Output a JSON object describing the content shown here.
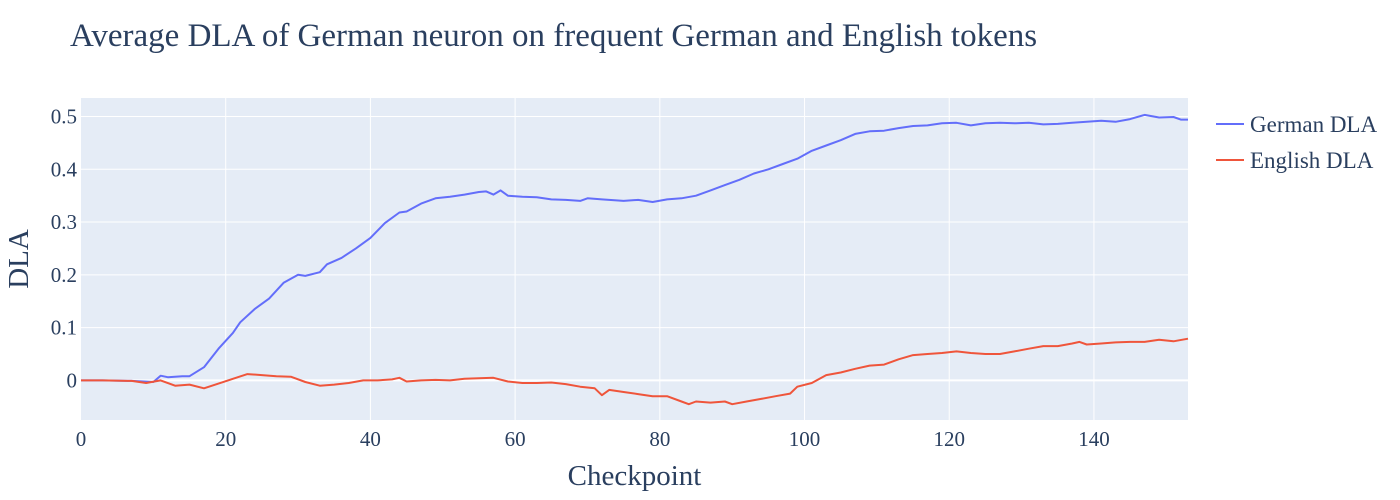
{
  "chart_data": {
    "type": "line",
    "title": "Average DLA of German neuron on frequent German and English tokens",
    "xlabel": "Checkpoint",
    "ylabel": "DLA",
    "xlim": [
      0,
      153
    ],
    "ylim": [
      -0.075,
      0.535
    ],
    "x_ticks": [
      0,
      20,
      40,
      60,
      80,
      100,
      120,
      140
    ],
    "y_ticks": [
      0,
      0.1,
      0.2,
      0.3,
      0.4,
      0.5
    ],
    "y_tick_labels": [
      "0",
      "0.1",
      "0.2",
      "0.3",
      "0.4",
      "0.5"
    ],
    "grid": true,
    "legend_position": "top-right",
    "plot_background": "#e5ecf6",
    "series": [
      {
        "name": "German DLA",
        "color": "#636efa",
        "points": [
          [
            0,
            0
          ],
          [
            3,
            0
          ],
          [
            7,
            -0.001
          ],
          [
            10,
            -0.003
          ],
          [
            11,
            0.009
          ],
          [
            12,
            0.006
          ],
          [
            14,
            0.008
          ],
          [
            15,
            0.008
          ],
          [
            17,
            0.025
          ],
          [
            19,
            0.06
          ],
          [
            21,
            0.09
          ],
          [
            22,
            0.11
          ],
          [
            24,
            0.135
          ],
          [
            26,
            0.155
          ],
          [
            28,
            0.185
          ],
          [
            30,
            0.2
          ],
          [
            31,
            0.198
          ],
          [
            33,
            0.205
          ],
          [
            34,
            0.22
          ],
          [
            36,
            0.232
          ],
          [
            38,
            0.25
          ],
          [
            40,
            0.27
          ],
          [
            42,
            0.298
          ],
          [
            44,
            0.318
          ],
          [
            45,
            0.32
          ],
          [
            47,
            0.335
          ],
          [
            49,
            0.345
          ],
          [
            51,
            0.348
          ],
          [
            53,
            0.352
          ],
          [
            55,
            0.357
          ],
          [
            56,
            0.358
          ],
          [
            57,
            0.352
          ],
          [
            58,
            0.36
          ],
          [
            59,
            0.35
          ],
          [
            61,
            0.348
          ],
          [
            63,
            0.347
          ],
          [
            65,
            0.343
          ],
          [
            67,
            0.342
          ],
          [
            69,
            0.34
          ],
          [
            70,
            0.345
          ],
          [
            72,
            0.343
          ],
          [
            75,
            0.34
          ],
          [
            77,
            0.342
          ],
          [
            79,
            0.338
          ],
          [
            81,
            0.343
          ],
          [
            83,
            0.345
          ],
          [
            85,
            0.35
          ],
          [
            87,
            0.36
          ],
          [
            89,
            0.37
          ],
          [
            91,
            0.38
          ],
          [
            93,
            0.392
          ],
          [
            95,
            0.4
          ],
          [
            97,
            0.41
          ],
          [
            99,
            0.42
          ],
          [
            101,
            0.435
          ],
          [
            103,
            0.445
          ],
          [
            105,
            0.455
          ],
          [
            107,
            0.467
          ],
          [
            109,
            0.472
          ],
          [
            111,
            0.473
          ],
          [
            113,
            0.478
          ],
          [
            115,
            0.482
          ],
          [
            117,
            0.483
          ],
          [
            119,
            0.487
          ],
          [
            121,
            0.488
          ],
          [
            123,
            0.483
          ],
          [
            125,
            0.487
          ],
          [
            127,
            0.488
          ],
          [
            129,
            0.487
          ],
          [
            131,
            0.488
          ],
          [
            133,
            0.485
          ],
          [
            135,
            0.486
          ],
          [
            137,
            0.488
          ],
          [
            139,
            0.49
          ],
          [
            141,
            0.492
          ],
          [
            143,
            0.49
          ],
          [
            145,
            0.495
          ],
          [
            147,
            0.503
          ],
          [
            149,
            0.498
          ],
          [
            151,
            0.499
          ],
          [
            152,
            0.494
          ],
          [
            153,
            0.494
          ]
        ]
      },
      {
        "name": "English DLA",
        "color": "#ef553b",
        "points": [
          [
            0,
            0
          ],
          [
            3,
            0
          ],
          [
            7,
            -0.001
          ],
          [
            9,
            -0.005
          ],
          [
            11,
            0
          ],
          [
            13,
            -0.01
          ],
          [
            15,
            -0.008
          ],
          [
            17,
            -0.015
          ],
          [
            19,
            -0.006
          ],
          [
            21,
            0.003
          ],
          [
            23,
            0.012
          ],
          [
            25,
            0.01
          ],
          [
            27,
            0.008
          ],
          [
            29,
            0.007
          ],
          [
            31,
            -0.003
          ],
          [
            33,
            -0.01
          ],
          [
            35,
            -0.008
          ],
          [
            37,
            -0.005
          ],
          [
            39,
            0
          ],
          [
            41,
            0
          ],
          [
            43,
            0.002
          ],
          [
            44,
            0.005
          ],
          [
            45,
            -0.002
          ],
          [
            47,
            0
          ],
          [
            49,
            0.001
          ],
          [
            51,
            0
          ],
          [
            53,
            0.003
          ],
          [
            55,
            0.004
          ],
          [
            57,
            0.005
          ],
          [
            59,
            -0.002
          ],
          [
            61,
            -0.005
          ],
          [
            63,
            -0.005
          ],
          [
            65,
            -0.004
          ],
          [
            67,
            -0.007
          ],
          [
            69,
            -0.012
          ],
          [
            71,
            -0.015
          ],
          [
            72,
            -0.028
          ],
          [
            73,
            -0.018
          ],
          [
            75,
            -0.022
          ],
          [
            77,
            -0.026
          ],
          [
            79,
            -0.03
          ],
          [
            81,
            -0.03
          ],
          [
            83,
            -0.04
          ],
          [
            84,
            -0.045
          ],
          [
            85,
            -0.04
          ],
          [
            87,
            -0.042
          ],
          [
            89,
            -0.04
          ],
          [
            90,
            -0.045
          ],
          [
            92,
            -0.04
          ],
          [
            94,
            -0.035
          ],
          [
            96,
            -0.03
          ],
          [
            98,
            -0.025
          ],
          [
            99,
            -0.012
          ],
          [
            101,
            -0.005
          ],
          [
            103,
            0.01
          ],
          [
            105,
            0.015
          ],
          [
            107,
            0.022
          ],
          [
            109,
            0.028
          ],
          [
            111,
            0.03
          ],
          [
            113,
            0.04
          ],
          [
            115,
            0.048
          ],
          [
            117,
            0.05
          ],
          [
            119,
            0.052
          ],
          [
            121,
            0.055
          ],
          [
            123,
            0.052
          ],
          [
            125,
            0.05
          ],
          [
            127,
            0.05
          ],
          [
            129,
            0.055
          ],
          [
            131,
            0.06
          ],
          [
            133,
            0.065
          ],
          [
            135,
            0.065
          ],
          [
            137,
            0.07
          ],
          [
            138,
            0.073
          ],
          [
            139,
            0.068
          ],
          [
            141,
            0.07
          ],
          [
            143,
            0.072
          ],
          [
            145,
            0.073
          ],
          [
            147,
            0.073
          ],
          [
            149,
            0.077
          ],
          [
            151,
            0.074
          ],
          [
            153,
            0.079
          ]
        ]
      }
    ]
  }
}
